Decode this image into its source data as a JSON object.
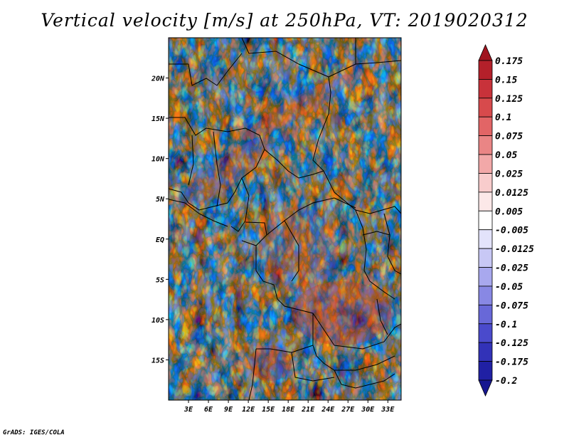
{
  "chart_data": {
    "type": "heatmap",
    "title": "Vertical velocity [m/s] at 250hPa, VT: 2019020312",
    "credit": "GrADS: IGES/COLA",
    "variable": "Vertical velocity",
    "units": "m/s",
    "level": "250hPa",
    "valid_time": "2019020312",
    "xlim": [
      0,
      35
    ],
    "ylim": [
      -20,
      25
    ],
    "x_ticks": [
      {
        "value": 3,
        "label": "3E"
      },
      {
        "value": 6,
        "label": "6E"
      },
      {
        "value": 9,
        "label": "9E"
      },
      {
        "value": 12,
        "label": "12E"
      },
      {
        "value": 15,
        "label": "15E"
      },
      {
        "value": 18,
        "label": "18E"
      },
      {
        "value": 21,
        "label": "21E"
      },
      {
        "value": 24,
        "label": "24E"
      },
      {
        "value": 27,
        "label": "27E"
      },
      {
        "value": 30,
        "label": "30E"
      },
      {
        "value": 33,
        "label": "33E"
      }
    ],
    "y_ticks": [
      {
        "value": 20,
        "label": "20N"
      },
      {
        "value": 15,
        "label": "15N"
      },
      {
        "value": 10,
        "label": "10N"
      },
      {
        "value": 5,
        "label": "5N"
      },
      {
        "value": 0,
        "label": "EQ"
      },
      {
        "value": -5,
        "label": "5S"
      },
      {
        "value": -10,
        "label": "10S"
      },
      {
        "value": -15,
        "label": "15S"
      }
    ],
    "colorbar": {
      "labels": [
        "0.175",
        "0.15",
        "0.125",
        "0.1",
        "0.075",
        "0.05",
        "0.025",
        "0.0125",
        "0.005",
        "-0.005",
        "-0.0125",
        "-0.025",
        "-0.05",
        "-0.075",
        "-0.1",
        "-0.125",
        "-0.175",
        "-0.2"
      ],
      "colors": [
        "#a0141e",
        "#b4202a",
        "#c8323a",
        "#d74a4c",
        "#e26566",
        "#ea8585",
        "#f2a8a8",
        "#f8cccc",
        "#fce8e8",
        "#ffffff",
        "#e3e3fb",
        "#c8c8f5",
        "#a8a8ee",
        "#8888e4",
        "#6868d8",
        "#4a4acc",
        "#3232b8",
        "#2020a4",
        "#161690"
      ]
    }
  }
}
